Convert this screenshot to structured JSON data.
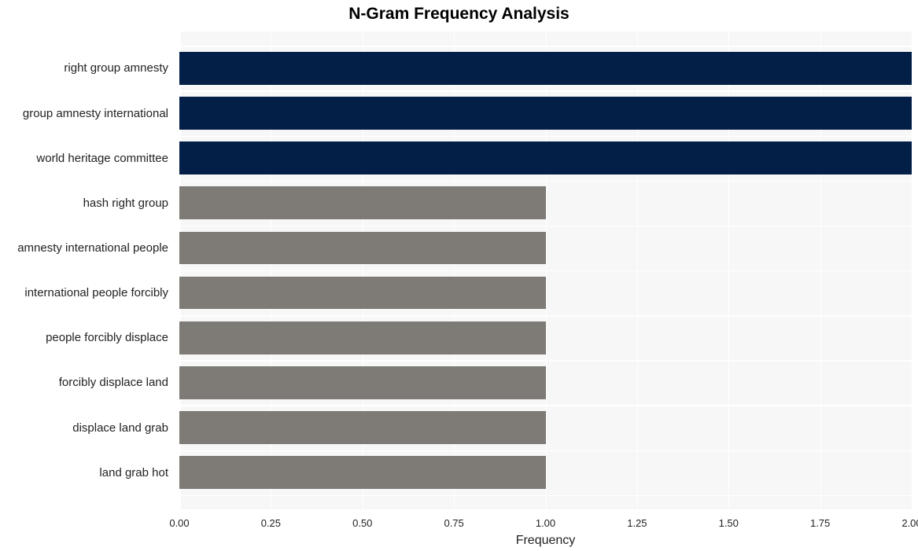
{
  "chart": {
    "type": "bar-horizontal",
    "title": "N-Gram Frequency Analysis",
    "title_fontsize": 21,
    "title_fontweight": "bold",
    "xlabel": "Frequency",
    "xlabel_fontsize": 16,
    "background_color": "#ffffff",
    "plot_background": "#f7f7f7",
    "grid_color": "#ffffff",
    "tick_fontsize": 13,
    "ylabel_fontsize": 15,
    "xlim": [
      0,
      2
    ],
    "xtick_step": 0.25,
    "xticks": [
      "0.00",
      "0.25",
      "0.50",
      "0.75",
      "1.00",
      "1.25",
      "1.50",
      "1.75",
      "2.00"
    ],
    "bar_height_ratio": 0.73,
    "categories": [
      "right group amnesty",
      "group amnesty international",
      "world heritage committee",
      "hash right group",
      "amnesty international people",
      "international people forcibly",
      "people forcibly displace",
      "forcibly displace land",
      "displace land grab",
      "land grab hot"
    ],
    "values": [
      2,
      2,
      2,
      1,
      1,
      1,
      1,
      1,
      1,
      1
    ],
    "bar_colors": [
      "#031f47",
      "#031f47",
      "#031f47",
      "#7e7b76",
      "#7e7b76",
      "#7e7b76",
      "#7e7b76",
      "#7e7b76",
      "#7e7b76",
      "#7e7b76"
    ]
  }
}
